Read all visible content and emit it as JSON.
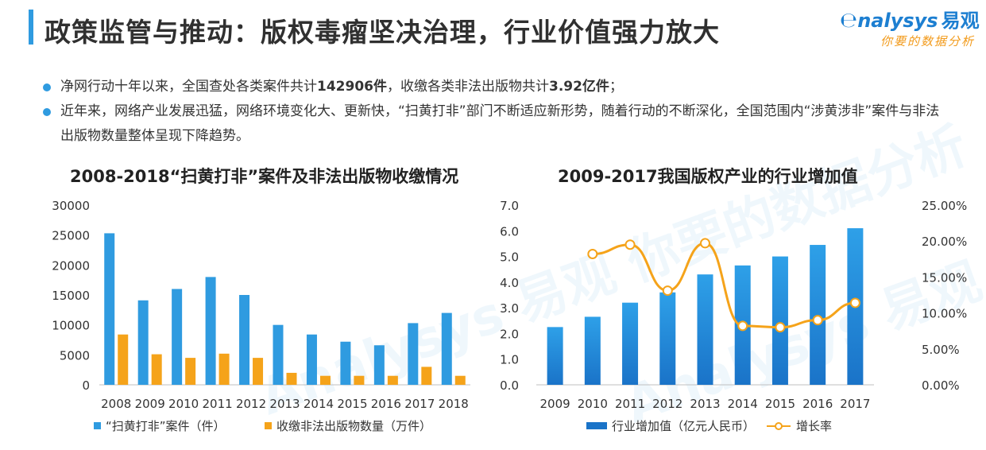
{
  "header": {
    "title": "政策监管与推动：版权毒瘤坚决治理，行业价值强力放大",
    "brand_name": "nalysys",
    "brand_cn": "易观",
    "brand_tagline": "你要的数据分析"
  },
  "bullets": [
    {
      "prefix": "净网行动十年以来，全国查处各类案件共计",
      "bold1": "142906件",
      "middle": "，收缴各类非法出版物共计",
      "bold2": "3.92亿件",
      "suffix": "；"
    },
    {
      "text": "近年来，网络产业发展迅猛，网络环境变化大、更新快，“扫黄打非”部门不断适应新形势，随着行动的不断深化，全国范围内“涉黄涉非”案件与非法出版物数量整体呈现下降趋势。"
    }
  ],
  "watermark": "Analysys 易观 你要的数据分析",
  "colors": {
    "blue": "#2f9be0",
    "orange": "#f5a31a",
    "bar_dark": "#1a73c8"
  },
  "chart_data": [
    {
      "type": "bar",
      "title": "2008-2018“扫黄打非”案件及非法出版物收缴情况",
      "categories": [
        "2008",
        "2009",
        "2010",
        "2011",
        "2012",
        "2013",
        "2014",
        "2015",
        "2016",
        "2017",
        "2018"
      ],
      "series": [
        {
          "name": "“扫黄打非”案件（件）",
          "color": "#2f9be0",
          "values": [
            25300,
            14100,
            16000,
            18000,
            15000,
            10000,
            8400,
            7200,
            6600,
            10300,
            12000
          ]
        },
        {
          "name": "收缴非法出版物数量（万件）",
          "color": "#f5a31a",
          "values": [
            8400,
            5100,
            4500,
            5200,
            4500,
            2000,
            1500,
            1500,
            1500,
            3000,
            1500
          ]
        }
      ],
      "ylim": [
        0,
        30000
      ],
      "yticks": [
        "0",
        "5000",
        "10000",
        "15000",
        "20000",
        "25000",
        "30000"
      ],
      "legend": "bottom"
    },
    {
      "type": "bar+line",
      "title": "2009-2017我国版权产业的行业增加值",
      "categories": [
        "2009",
        "2010",
        "2011",
        "2012",
        "2013",
        "2014",
        "2015",
        "2016",
        "2017"
      ],
      "bar_series": {
        "name": "行业增加值（亿元人民币）",
        "color": "#1a73c8",
        "values": [
          2.25,
          2.65,
          3.2,
          3.6,
          4.3,
          4.65,
          5.0,
          5.45,
          6.1
        ]
      },
      "line_series": {
        "name": "增长率",
        "color": "#f5a31a",
        "values": [
          null,
          0.182,
          0.195,
          0.131,
          0.197,
          0.082,
          0.08,
          0.09,
          0.114
        ]
      },
      "ylim_left": [
        0,
        7
      ],
      "yticks_left": [
        "0.0",
        "1.0",
        "2.0",
        "3.0",
        "4.0",
        "5.0",
        "6.0",
        "7.0"
      ],
      "ylim_right": [
        0,
        0.25
      ],
      "yticks_right": [
        "0.00%",
        "5.00%",
        "10.00%",
        "15.00%",
        "20.00%",
        "25.00%"
      ],
      "legend": "bottom"
    }
  ]
}
